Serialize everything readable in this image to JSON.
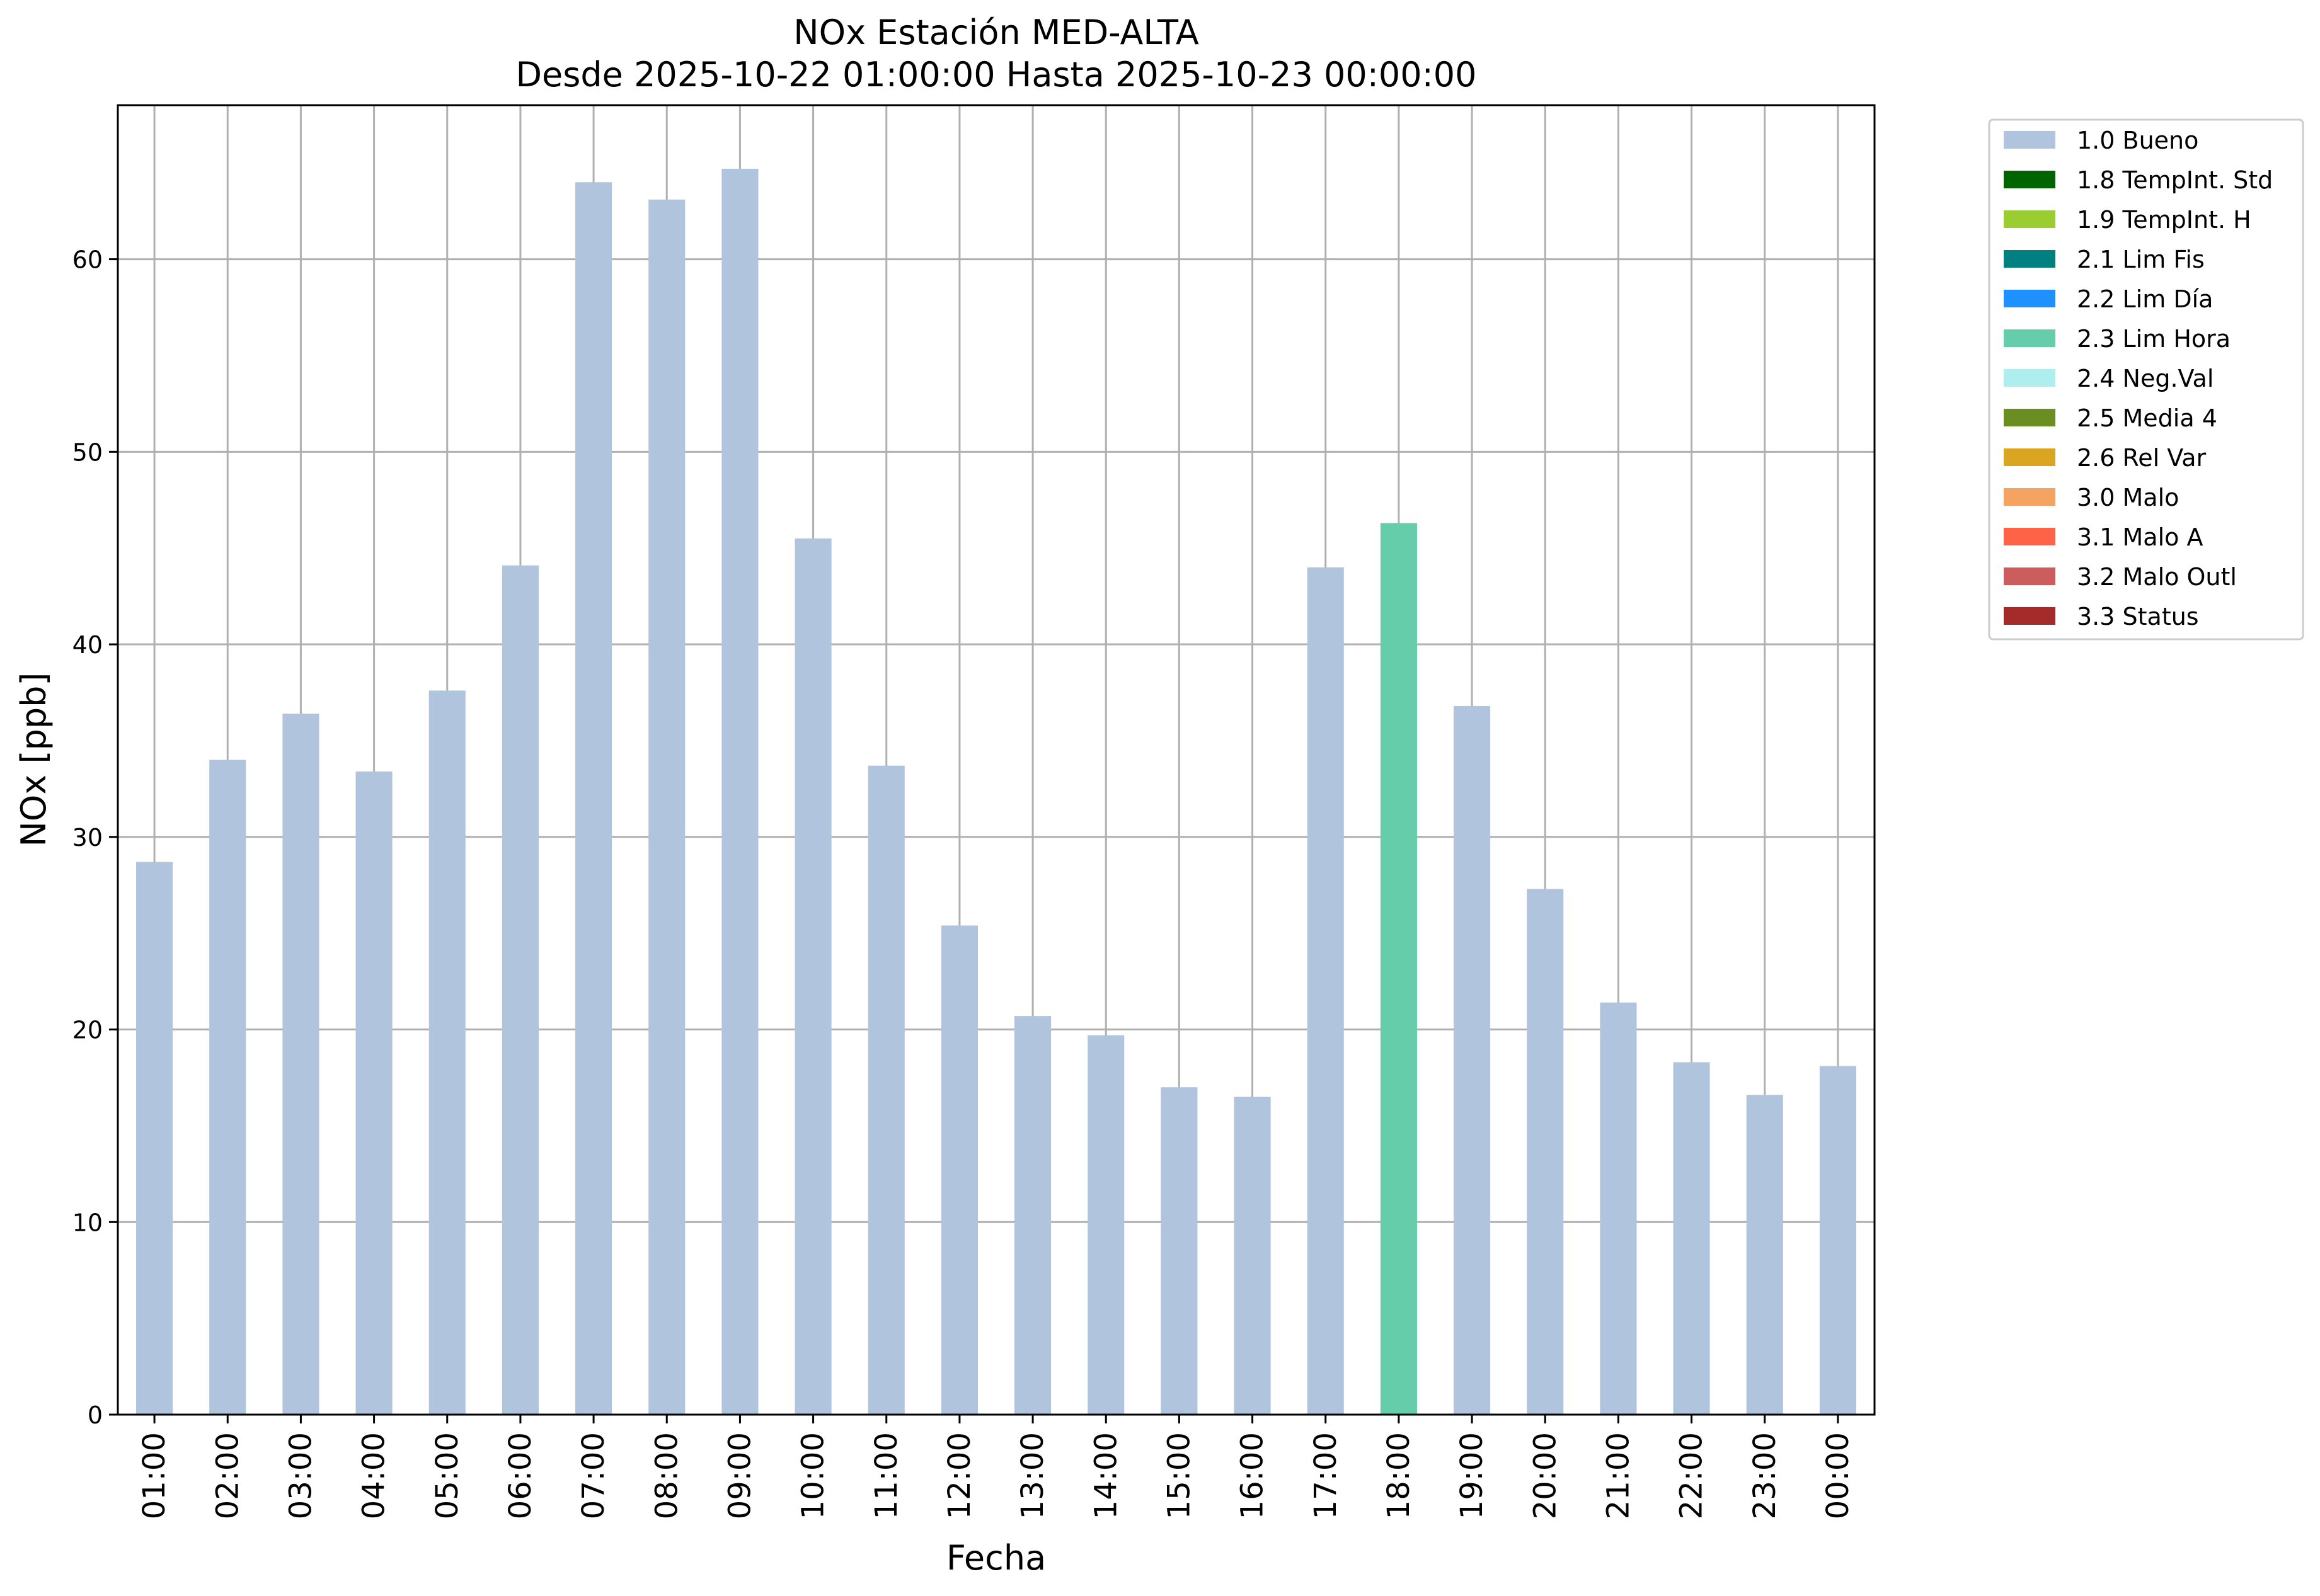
{
  "chart_data": {
    "type": "bar",
    "title": "NOx Estación MED-ALTA",
    "subtitle": "Desde 2025-10-22 01:00:00 Hasta 2025-10-23 00:00:00",
    "xlabel": "Fecha",
    "ylabel": "NOx [ppb]",
    "ylim": [
      0,
      68
    ],
    "yticks": [
      0,
      10,
      20,
      30,
      40,
      50,
      60
    ],
    "grid": true,
    "legend_position": "outside-top-right",
    "categories": [
      "01:00",
      "02:00",
      "03:00",
      "04:00",
      "05:00",
      "06:00",
      "07:00",
      "08:00",
      "09:00",
      "10:00",
      "11:00",
      "12:00",
      "13:00",
      "14:00",
      "15:00",
      "16:00",
      "17:00",
      "18:00",
      "19:00",
      "20:00",
      "21:00",
      "22:00",
      "23:00",
      "00:00"
    ],
    "values": [
      28.7,
      34.0,
      36.4,
      33.4,
      37.6,
      44.1,
      64.0,
      63.1,
      64.7,
      45.5,
      33.7,
      25.4,
      20.7,
      19.7,
      17.0,
      16.5,
      44.0,
      46.3,
      36.8,
      27.3,
      21.4,
      18.3,
      16.6,
      18.1
    ],
    "bar_flags": [
      "1.0 Bueno",
      "1.0 Bueno",
      "1.0 Bueno",
      "1.0 Bueno",
      "1.0 Bueno",
      "1.0 Bueno",
      "1.0 Bueno",
      "1.0 Bueno",
      "1.0 Bueno",
      "1.0 Bueno",
      "1.0 Bueno",
      "1.0 Bueno",
      "1.0 Bueno",
      "1.0 Bueno",
      "1.0 Bueno",
      "1.0 Bueno",
      "1.0 Bueno",
      "2.3 Lim Hora",
      "1.0 Bueno",
      "1.0 Bueno",
      "1.0 Bueno",
      "1.0 Bueno",
      "1.0 Bueno",
      "1.0 Bueno"
    ],
    "legend": [
      {
        "label": "1.0 Bueno",
        "color": "#b0c4de"
      },
      {
        "label": "1.8 TempInt. Std",
        "color": "#006400"
      },
      {
        "label": "1.9 TempInt. H",
        "color": "#9acd32"
      },
      {
        "label": "2.1 Lim Fis",
        "color": "#008080"
      },
      {
        "label": "2.2 Lim Día",
        "color": "#1e90ff"
      },
      {
        "label": "2.3 Lim Hora",
        "color": "#66cdaa"
      },
      {
        "label": "2.4 Neg.Val",
        "color": "#afeeee"
      },
      {
        "label": "2.5 Media 4",
        "color": "#6b8e23"
      },
      {
        "label": "2.6 Rel Var",
        "color": "#daa520"
      },
      {
        "label": "3.0 Malo",
        "color": "#f4a460"
      },
      {
        "label": "3.1 Malo A",
        "color": "#ff6347"
      },
      {
        "label": "3.2 Malo Outl",
        "color": "#cd5c5c"
      },
      {
        "label": "3.3 Status",
        "color": "#a52a2a"
      }
    ],
    "grid_color": "#b0b0b0"
  }
}
